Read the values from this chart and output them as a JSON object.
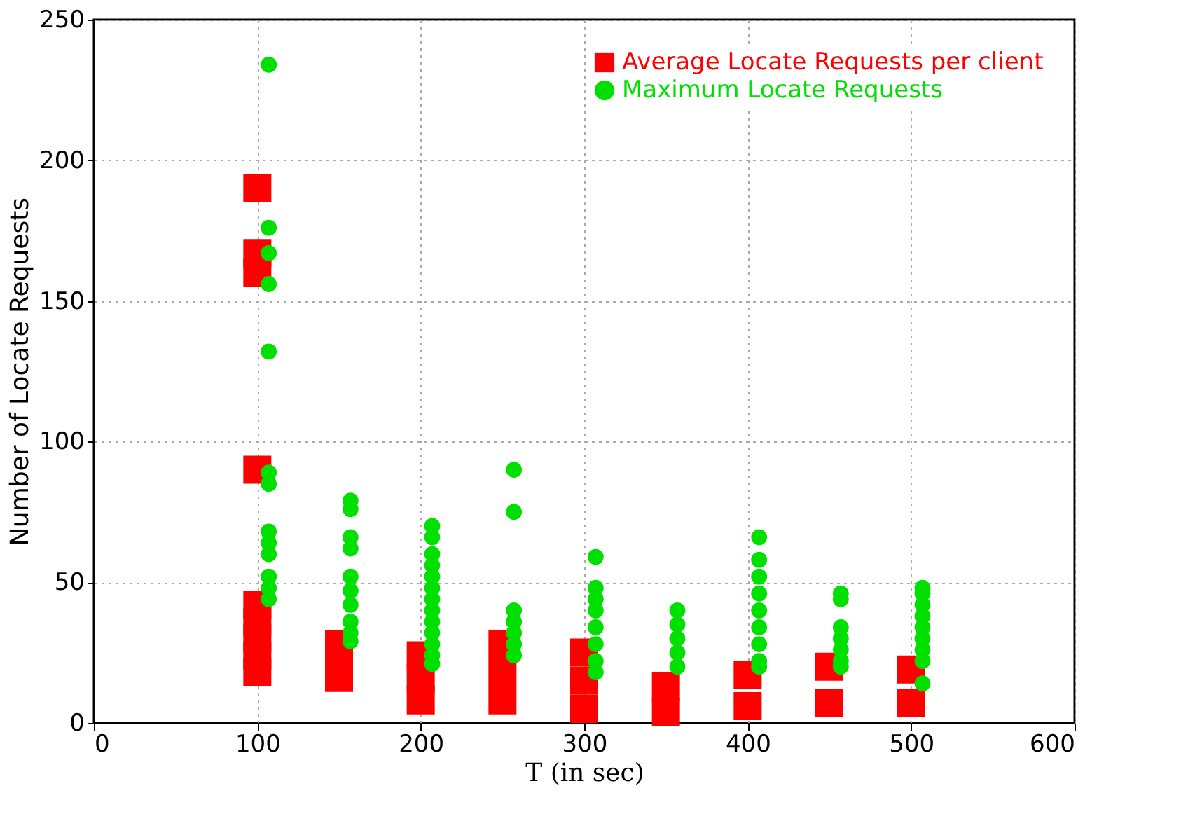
{
  "chart_data": {
    "type": "scatter",
    "xlabel": "T (in sec)",
    "ylabel": "Number of Locate Requests",
    "xlim": [
      0,
      600
    ],
    "ylim": [
      0,
      250
    ],
    "xticks": [
      0,
      100,
      200,
      300,
      400,
      500,
      600
    ],
    "yticks": [
      0,
      50,
      100,
      150,
      200,
      250
    ],
    "grid": true,
    "legend": "top right",
    "series": [
      {
        "name": "Average Locate Requests per client",
        "color": "#ff0000",
        "marker": "square",
        "x": [
          100,
          100,
          100,
          100,
          100,
          100,
          100,
          100,
          100,
          150,
          150,
          150,
          200,
          200,
          200,
          250,
          250,
          250,
          300,
          300,
          300,
          350,
          350,
          400,
          400,
          450,
          450,
          500,
          500
        ],
        "values": [
          190,
          167,
          160,
          90,
          42,
          36,
          30,
          24,
          18,
          28,
          22,
          16,
          24,
          16,
          8,
          28,
          18,
          8,
          25,
          15,
          5,
          13,
          4,
          17,
          6,
          20,
          7,
          19,
          7
        ]
      },
      {
        "name": "Maximum Locate Requests",
        "color": "#00e000",
        "marker": "circle",
        "x": [
          107,
          107,
          107,
          107,
          107,
          107,
          107,
          107,
          107,
          107,
          107,
          107,
          107,
          157,
          157,
          157,
          157,
          157,
          157,
          157,
          157,
          157,
          157,
          207,
          207,
          207,
          207,
          207,
          207,
          207,
          207,
          207,
          207,
          207,
          207,
          207,
          257,
          257,
          257,
          257,
          257,
          257,
          257,
          307,
          307,
          307,
          307,
          307,
          307,
          307,
          307,
          357,
          357,
          357,
          357,
          357,
          407,
          407,
          407,
          407,
          407,
          407,
          407,
          407,
          407,
          457,
          457,
          457,
          457,
          457,
          457,
          457,
          507,
          507,
          507,
          507,
          507,
          507,
          507,
          507,
          507
        ],
        "values": [
          234,
          176,
          167,
          156,
          132,
          89,
          85,
          68,
          64,
          60,
          52,
          48,
          44,
          79,
          76,
          66,
          62,
          52,
          47,
          42,
          36,
          32,
          29,
          70,
          66,
          60,
          56,
          52,
          48,
          44,
          40,
          36,
          32,
          28,
          24,
          21,
          90,
          75,
          40,
          36,
          32,
          28,
          24,
          59,
          48,
          44,
          40,
          34,
          28,
          22,
          18,
          40,
          35,
          30,
          25,
          20,
          66,
          58,
          52,
          46,
          40,
          34,
          28,
          22,
          20,
          46,
          44,
          34,
          30,
          26,
          22,
          20,
          48,
          46,
          42,
          38,
          34,
          30,
          26,
          22,
          14
        ]
      }
    ]
  }
}
